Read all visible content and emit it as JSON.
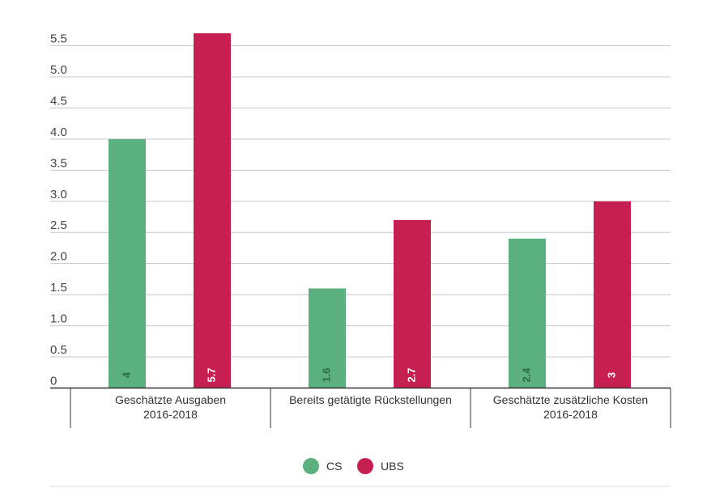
{
  "chart_data": {
    "type": "bar",
    "categories": [
      [
        "Geschätzte Ausgaben",
        "2016-2018"
      ],
      [
        "Bereits getätigte Rückstellungen"
      ],
      [
        "Geschätzte zusätzliche Kosten",
        "2016-2018"
      ]
    ],
    "series": [
      {
        "name": "CS",
        "color": "#5ab07e",
        "values": [
          4,
          1.6,
          2.4
        ],
        "labels": [
          "4",
          "1.6",
          "2.4"
        ],
        "label_color": "#2e6b47"
      },
      {
        "name": "UBS",
        "color": "#c81f52",
        "values": [
          5.7,
          2.7,
          3
        ],
        "labels": [
          "5.7",
          "2.7",
          "3"
        ],
        "label_color": "#ffffff"
      }
    ],
    "yticks": [
      "0",
      "0.5",
      "1.0",
      "1.5",
      "2.0",
      "2.5",
      "3.0",
      "3.5",
      "4.0",
      "4.5",
      "5.0",
      "5.5"
    ],
    "ylim": [
      0,
      5.5
    ],
    "grid": true,
    "legend_position": "bottom-center",
    "title": "",
    "xlabel": "",
    "ylabel": ""
  }
}
